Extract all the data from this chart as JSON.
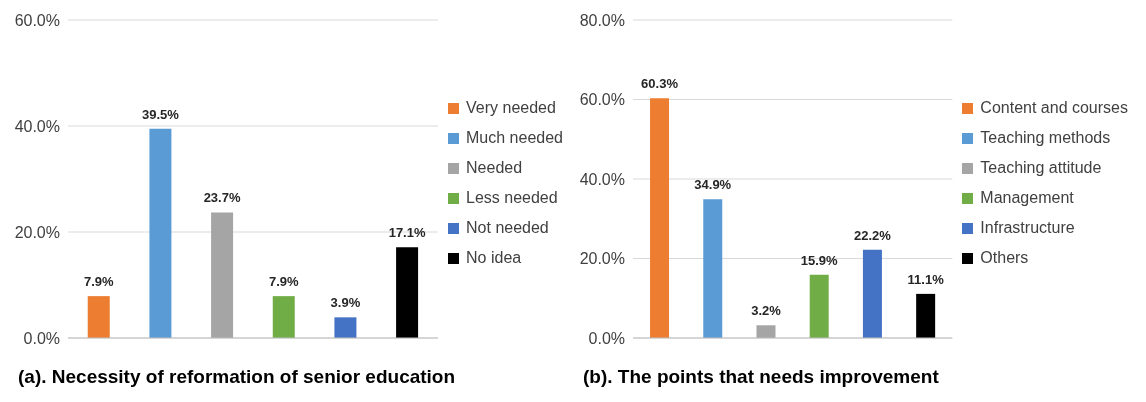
{
  "chart_data": [
    {
      "type": "bar",
      "title": "(a). Necessity of reformation of senior education",
      "categories": [
        null,
        null,
        null,
        null,
        null,
        null
      ],
      "series": [
        {
          "name": "Very needed",
          "color": "#ed7d31",
          "values": [
            7.9,
            null,
            null,
            null,
            null,
            null
          ],
          "value_labels": [
            "7.9%",
            null,
            null,
            null,
            null,
            null
          ]
        },
        {
          "name": "Much needed",
          "color": "#5b9bd5",
          "values": [
            null,
            39.5,
            null,
            null,
            null,
            null
          ],
          "value_labels": [
            null,
            "39.5%",
            null,
            null,
            null,
            null
          ]
        },
        {
          "name": "Needed",
          "color": "#a5a5a5",
          "values": [
            null,
            null,
            23.7,
            null,
            null,
            null
          ],
          "value_labels": [
            null,
            null,
            "23.7%",
            null,
            null,
            null
          ]
        },
        {
          "name": "Less needed",
          "color": "#70ad47",
          "values": [
            null,
            null,
            null,
            7.9,
            null,
            null
          ],
          "value_labels": [
            null,
            null,
            null,
            "7.9%",
            null,
            null
          ]
        },
        {
          "name": "Not needed",
          "color": "#4472c4",
          "values": [
            null,
            null,
            null,
            null,
            3.9,
            null
          ],
          "value_labels": [
            null,
            null,
            null,
            null,
            "3.9%",
            null
          ]
        },
        {
          "name": "No idea",
          "color": "#000000",
          "values": [
            null,
            null,
            null,
            null,
            null,
            17.1
          ],
          "value_labels": [
            null,
            null,
            null,
            null,
            null,
            "17.1%"
          ]
        }
      ],
      "ylim": [
        0,
        60
      ],
      "yticks": [
        {
          "value": 0,
          "label": "0.0%"
        },
        {
          "value": 20,
          "label": "20.0%"
        },
        {
          "value": 40,
          "label": "40.0%"
        },
        {
          "value": 60,
          "label": "60.0%"
        }
      ],
      "grid": "y",
      "legend": "right"
    },
    {
      "type": "bar",
      "title": "(b). The points that needs improvement",
      "categories": [
        null,
        null,
        null,
        null,
        null,
        null
      ],
      "series": [
        {
          "name": "Content and courses",
          "color": "#ed7d31",
          "values": [
            60.3,
            null,
            null,
            null,
            null,
            null
          ],
          "value_labels": [
            "60.3%",
            null,
            null,
            null,
            null,
            null
          ]
        },
        {
          "name": "Teaching methods",
          "color": "#5b9bd5",
          "values": [
            null,
            34.9,
            null,
            null,
            null,
            null
          ],
          "value_labels": [
            null,
            "34.9%",
            null,
            null,
            null,
            null
          ]
        },
        {
          "name": "Teaching attitude",
          "color": "#a5a5a5",
          "values": [
            null,
            null,
            3.2,
            null,
            null,
            null
          ],
          "value_labels": [
            null,
            null,
            "3.2%",
            null,
            null,
            null
          ]
        },
        {
          "name": "Management",
          "color": "#70ad47",
          "values": [
            null,
            null,
            null,
            15.9,
            null,
            null
          ],
          "value_labels": [
            null,
            null,
            null,
            "15.9%",
            null,
            null
          ]
        },
        {
          "name": "Infrastructure",
          "color": "#4472c4",
          "values": [
            null,
            null,
            null,
            null,
            22.2,
            null
          ],
          "value_labels": [
            null,
            null,
            null,
            null,
            "22.2%",
            null
          ]
        },
        {
          "name": "Others",
          "color": "#000000",
          "values": [
            null,
            null,
            null,
            null,
            null,
            11.1
          ],
          "value_labels": [
            null,
            null,
            null,
            null,
            null,
            "11.1%"
          ]
        }
      ],
      "ylim": [
        0,
        80
      ],
      "yticks": [
        {
          "value": 0,
          "label": "0.0%"
        },
        {
          "value": 20,
          "label": "20.0%"
        },
        {
          "value": 40,
          "label": "40.0%"
        },
        {
          "value": 60,
          "label": "60.0%"
        },
        {
          "value": 80,
          "label": "80.0%"
        }
      ],
      "grid": "y",
      "legend": "right"
    }
  ]
}
